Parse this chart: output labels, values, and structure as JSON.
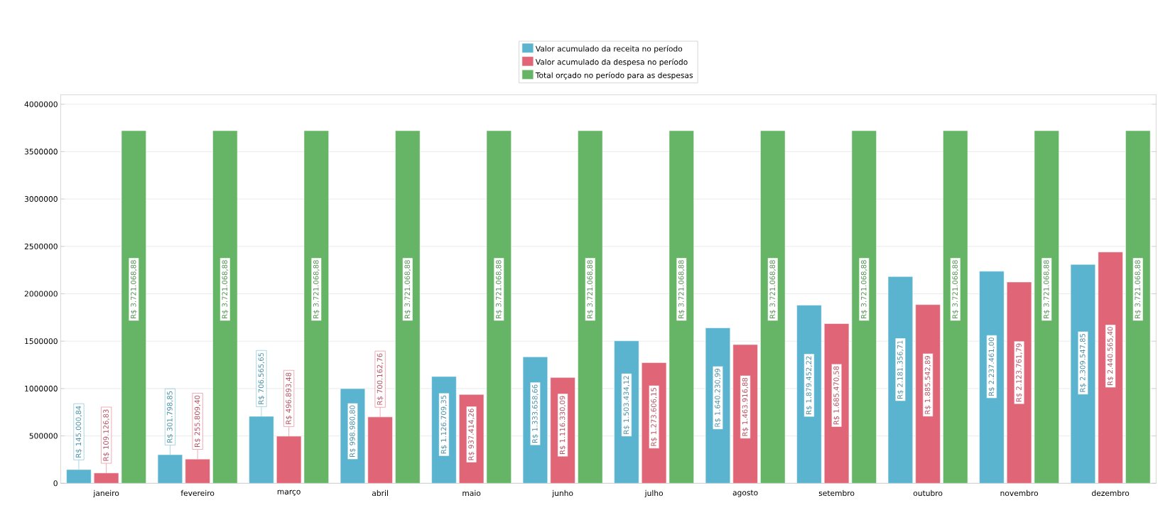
{
  "chart_data": {
    "type": "bar",
    "categories": [
      "janeiro",
      "fevereiro",
      "março",
      "abril",
      "maio",
      "junho",
      "julho",
      "agosto",
      "setembro",
      "outubro",
      "novembro",
      "dezembro"
    ],
    "ylim": [
      0,
      4100000
    ],
    "yticks": [
      0,
      500000,
      1000000,
      1500000,
      2000000,
      2500000,
      3000000,
      3500000,
      4000000
    ],
    "grid": "y",
    "legend": "top",
    "series": [
      {
        "name": "Valor acumulado da receita no período",
        "color": "#5ab4cf",
        "values": [
          145000.84,
          301798.85,
          706565.65,
          998980.8,
          1126709.35,
          1333658.66,
          1503434.12,
          1640230.99,
          1879452.22,
          2181356.71,
          2237461.0,
          2309547.85
        ],
        "value_labels": [
          "R$ 145.000,84",
          "R$ 301.798,85",
          "R$ 706.565,65",
          "R$ 998.980,80",
          "R$ 1.126.709,35",
          "R$ 1.333.658,66",
          "R$ 1.503.434,12",
          "R$ 1.640.230,99",
          "R$ 1.879.452,22",
          "R$ 2.181.356,71",
          "R$ 2.237.461,00",
          "R$ 2.309.547,85"
        ]
      },
      {
        "name": "Valor acumulado da despesa no período",
        "color": "#e06577",
        "values": [
          109126.83,
          255809.4,
          496893.48,
          700162.76,
          937414.26,
          1116330.09,
          1273606.15,
          1463916.88,
          1685470.58,
          1885542.89,
          2123761.79,
          2440565.4
        ],
        "value_labels": [
          "R$ 109.126,83",
          "R$ 255.809,40",
          "R$ 496.893,48",
          "R$ 700.162,76",
          "R$ 937.414,26",
          "R$ 1.116.330,09",
          "R$ 1.273.606,15",
          "R$ 1.463.916,88",
          "R$ 1.685.470,58",
          "R$ 1.885.542,89",
          "R$ 2.123.761,79",
          "R$ 2.440.565,40"
        ]
      },
      {
        "name": "Total orçado no período para as despesas",
        "color": "#66b566",
        "values": [
          3721068.88,
          3721068.88,
          3721068.88,
          3721068.88,
          3721068.88,
          3721068.88,
          3721068.88,
          3721068.88,
          3721068.88,
          3721068.88,
          3721068.88,
          3721068.88
        ],
        "value_labels": [
          "R$ 3.721.068,88",
          "R$ 3.721.068,88",
          "R$ 3.721.068,88",
          "R$ 3.721.068,88",
          "R$ 3.721.068,88",
          "R$ 3.721.068,88",
          "R$ 3.721.068,88",
          "R$ 3.721.068,88",
          "R$ 3.721.068,88",
          "R$ 3.721.068,88",
          "R$ 3.721.068,88",
          "R$ 3.721.068,88"
        ]
      }
    ]
  }
}
